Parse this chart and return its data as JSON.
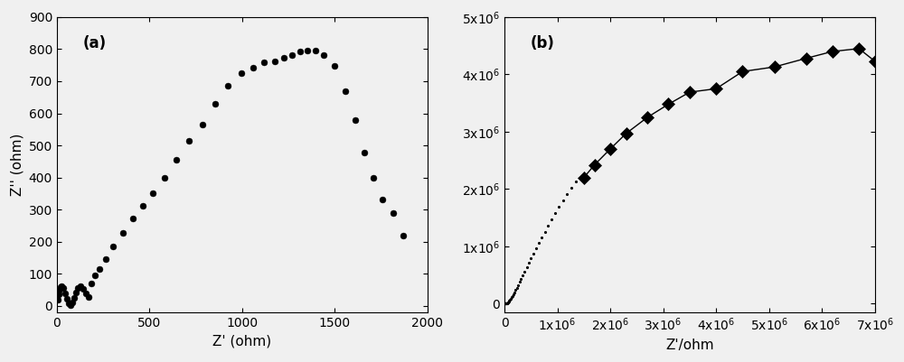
{
  "panel_a": {
    "label": "(a)",
    "xlabel": "Z' (ohm)",
    "ylabel": "Z'' (ohm)",
    "xlim": [
      0,
      2000
    ],
    "ylim": [
      -20,
      900
    ],
    "yticks": [
      0,
      100,
      200,
      300,
      400,
      500,
      600,
      700,
      800,
      900
    ],
    "xticks": [
      0,
      500,
      1000,
      1500,
      2000
    ],
    "x": [
      5,
      8,
      12,
      18,
      25,
      35,
      45,
      55,
      65,
      75,
      85,
      95,
      105,
      115,
      125,
      140,
      155,
      170,
      185,
      205,
      230,
      265,
      305,
      355,
      410,
      465,
      520,
      580,
      645,
      715,
      785,
      855,
      925,
      995,
      1060,
      1120,
      1175,
      1225,
      1270,
      1315,
      1355,
      1395,
      1440,
      1500,
      1560,
      1610,
      1660,
      1710,
      1760,
      1815,
      1870
    ],
    "y": [
      20,
      35,
      48,
      58,
      62,
      55,
      40,
      22,
      8,
      3,
      10,
      25,
      42,
      56,
      60,
      52,
      38,
      28,
      70,
      95,
      115,
      145,
      185,
      228,
      272,
      312,
      352,
      400,
      455,
      515,
      565,
      630,
      685,
      725,
      742,
      758,
      763,
      773,
      782,
      792,
      797,
      797,
      782,
      748,
      668,
      578,
      478,
      398,
      332,
      288,
      218
    ],
    "marker": "o",
    "markersize": 5,
    "color": "black"
  },
  "panel_b": {
    "label": "(b)",
    "xlabel": "Z'/ohm",
    "xlim": [
      0,
      7000000
    ],
    "ylim": [
      -150000,
      5000000
    ],
    "yticks": [
      0,
      1000000,
      2000000,
      3000000,
      4000000,
      5000000
    ],
    "xticks": [
      0,
      1000000,
      2000000,
      3000000,
      4000000,
      5000000,
      6000000,
      7000000
    ],
    "x_dense": [
      2000,
      4000,
      6000,
      8000,
      10000,
      12000,
      15000,
      18000,
      22000,
      26000,
      30000,
      35000,
      41000,
      47000,
      54000,
      62000,
      71000,
      81000,
      92000,
      104000,
      117000,
      132000,
      148000,
      166000,
      185000,
      207000,
      230000,
      255000,
      283000,
      313000,
      345000,
      380000,
      418000,
      458000,
      501000,
      547000,
      596000,
      648000,
      703000,
      761000,
      822000,
      887000,
      955000,
      1027000,
      1103000,
      1183000,
      1267000,
      1356000
    ],
    "y_dense": [
      0,
      2000,
      4000,
      6000,
      8000,
      9500,
      10000,
      9000,
      7500,
      5000,
      3000,
      3000,
      5000,
      8000,
      12000,
      18000,
      26000,
      36000,
      50000,
      66000,
      85000,
      108000,
      134000,
      163000,
      197000,
      235000,
      278000,
      325000,
      378000,
      435000,
      497000,
      562000,
      634000,
      709000,
      790000,
      874000,
      963000,
      1057000,
      1154000,
      1255000,
      1360000,
      1467000,
      1577000,
      1688000,
      1800000,
      1912000,
      2023000,
      2130000
    ],
    "x_sparse": [
      1500000,
      1700000,
      2000000,
      2300000,
      2700000,
      3100000,
      3500000,
      4000000,
      4500000,
      5100000,
      5700000,
      6200000,
      6700000,
      7000000
    ],
    "y_sparse": [
      2200000,
      2420000,
      2700000,
      2970000,
      3250000,
      3480000,
      3690000,
      3750000,
      4050000,
      4130000,
      4280000,
      4400000,
      4450000,
      4230000
    ],
    "markersize_dense": 2.5,
    "markersize_sparse": 7,
    "color": "black"
  },
  "bg_color": "#f0f0f0",
  "fig_bg": "#f0f0f0"
}
